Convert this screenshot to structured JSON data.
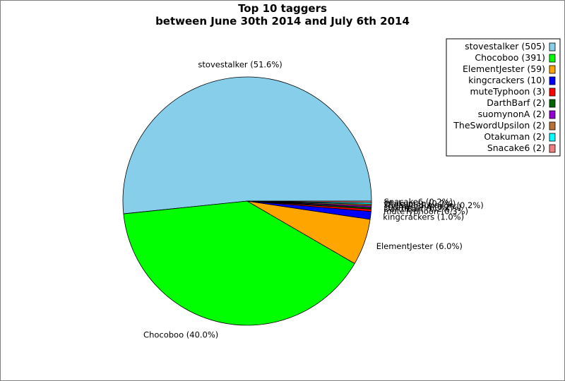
{
  "chart_data": {
    "type": "pie",
    "title": "Top 10 taggers",
    "subtitle": "between June 30th 2014 and July 6th 2014",
    "legend_position": "top-right",
    "slices": [
      {
        "name": "stovestalker",
        "value": 505,
        "percent_label": "51.6%",
        "legend_label": "stovestalker (505)",
        "slice_label": "stovestalker (51.6%)",
        "color": "#87ceeb"
      },
      {
        "name": "Chocoboo",
        "value": 391,
        "percent_label": "40.0%",
        "legend_label": "Chocoboo (391)",
        "slice_label": "Chocoboo (40.0%)",
        "color": "#00ff00"
      },
      {
        "name": "ElementJester",
        "value": 59,
        "percent_label": "6.0%",
        "legend_label": "ElementJester (59)",
        "slice_label": "ElementJester (6.0%)",
        "color": "#ffa500"
      },
      {
        "name": "kingcrackers",
        "value": 10,
        "percent_label": "1.0%",
        "legend_label": "kingcrackers (10)",
        "slice_label": "kingcrackers (1.0%)",
        "color": "#0000ff"
      },
      {
        "name": "muteTyphoon",
        "value": 3,
        "percent_label": "0.3%",
        "legend_label": "muteTyphoon (3)",
        "slice_label": "muteTyphoon (0.3%)",
        "color": "#ff0000"
      },
      {
        "name": "DarthBarf",
        "value": 2,
        "percent_label": "0.2%",
        "legend_label": "DarthBarf (2)",
        "slice_label": "DarthBarf (0.2%)",
        "color": "#006400"
      },
      {
        "name": "suomynonA",
        "value": 2,
        "percent_label": "0.2%",
        "legend_label": "suomynonA (2)",
        "slice_label": "suomynonA (0.2%)",
        "color": "#9400d3"
      },
      {
        "name": "TheSwordUpsilon",
        "value": 2,
        "percent_label": "0.2%",
        "legend_label": "TheSwordUpsilon (2)",
        "slice_label": "TheSwordUpsilon (0.2%)",
        "color": "#b87333"
      },
      {
        "name": "Otakuman",
        "value": 2,
        "percent_label": "0.2%",
        "legend_label": "Otakuman (2)",
        "slice_label": "Otakuman (0.2%)",
        "color": "#00ffff"
      },
      {
        "name": "Snacake6",
        "value": 2,
        "percent_label": "0.2%",
        "legend_label": "Snacake6 (2)",
        "slice_label": "Snacake6 (0.2%)",
        "color": "#f08080"
      }
    ]
  }
}
